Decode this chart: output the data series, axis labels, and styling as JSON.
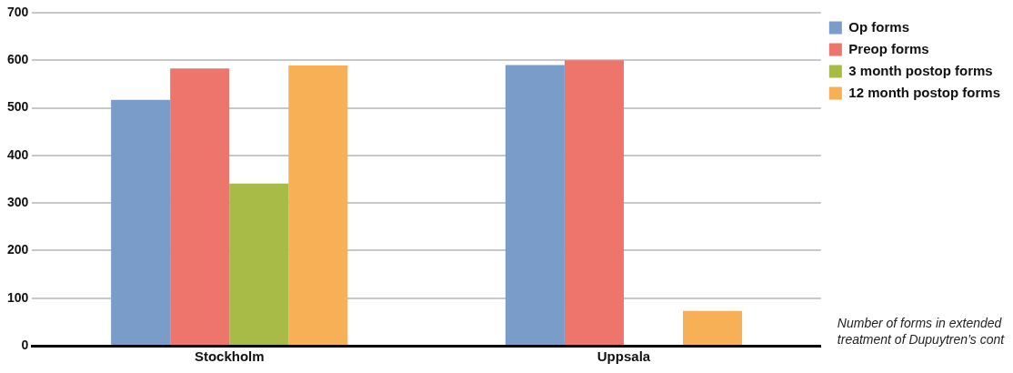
{
  "chart_data": {
    "type": "bar",
    "categories": [
      "Stockholm",
      "Uppsala"
    ],
    "series": [
      {
        "name": "Op forms",
        "color": "#7a9cc9",
        "values": [
          517,
          590
        ]
      },
      {
        "name": "Preop forms",
        "color": "#ed756b",
        "values": [
          583,
          600
        ]
      },
      {
        "name": "3 month postop forms",
        "color": "#a9bb47",
        "values": [
          341,
          null
        ]
      },
      {
        "name": "12 month postop forms",
        "color": "#f7b056",
        "values": [
          589,
          73
        ]
      }
    ],
    "ylim": [
      0,
      700
    ],
    "yticks": [
      0,
      100,
      200,
      300,
      400,
      500,
      600,
      700
    ],
    "grid": "y",
    "legend": "top right",
    "annotations": [
      "Number of forms in extended treatment of Dupuytren’s cont"
    ]
  }
}
